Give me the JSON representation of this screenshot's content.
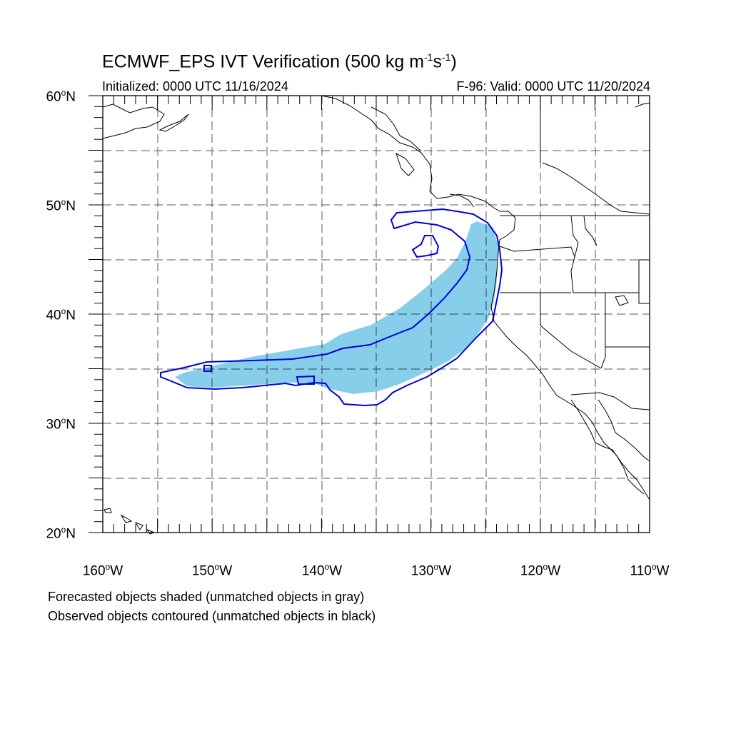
{
  "title": {
    "main": "ECMWF_EPS IVT Verification (500 kg m",
    "exp1": "-1",
    "mid": "s",
    "exp2": "-1",
    "end": ")"
  },
  "subtitle": {
    "left": "Initialized: 0000 UTC 11/16/2024",
    "right": "F-96: Valid: 0000 UTC 11/20/2024"
  },
  "axes": {
    "lat_labels": [
      "60",
      "50",
      "40",
      "30",
      "20"
    ],
    "lat_suffix": "N",
    "lon_labels": [
      "160",
      "150",
      "140",
      "130",
      "120",
      "110"
    ],
    "lon_suffix": "W",
    "degree_symbol": "o",
    "lon_range": [
      -160,
      -110
    ],
    "lat_range": [
      20,
      60
    ]
  },
  "legend": {
    "line1": "Forecasted objects shaded (unmatched objects in gray)",
    "line2": "Observed objects contoured (unmatched objects in black)"
  },
  "colors": {
    "forecast_fill": "#87ceeb",
    "observed_contour": "#0000dd",
    "coastline": "#000000",
    "grid": "#000000"
  }
}
